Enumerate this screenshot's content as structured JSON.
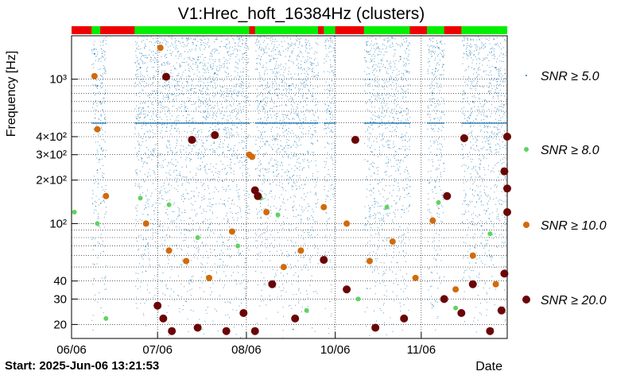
{
  "chart_data": {
    "type": "scatter",
    "title": "V1:Hrec_hoft_16384Hz (clusters)",
    "xlabel": "Date",
    "ylabel": "Frequency [Hz]",
    "x_unit": "days since 2025-06-06",
    "xlim": [
      0,
      152
    ],
    "ylim": [
      16,
      2000
    ],
    "yscale": "log",
    "x_ticks": [
      {
        "label": "06/06",
        "day": 0
      },
      {
        "label": "07/06",
        "day": 30
      },
      {
        "label": "08/06",
        "day": 61
      },
      {
        "label": "10/06",
        "day": 92
      },
      {
        "label": "11/06",
        "day": 122
      }
    ],
    "y_ticks": [
      {
        "label": "20",
        "value": 20
      },
      {
        "label": "30",
        "value": 30
      },
      {
        "label": "40",
        "value": 40
      },
      {
        "label": "10²",
        "value": 100
      },
      {
        "label": "2×10²",
        "value": 200
      },
      {
        "label": "3×10²",
        "value": 300
      },
      {
        "label": "4×10²",
        "value": 400
      },
      {
        "label": "10³",
        "value": 1000
      }
    ],
    "start_text": "Start: 2025-Jun-06 13:21:53",
    "segment_bar": {
      "legend_states": [
        "segment-on",
        "segment-off"
      ],
      "colors": {
        "on": "#00ee00",
        "off": "#ee0000"
      },
      "on_intervals": [
        [
          7,
          10
        ],
        [
          22,
          62
        ],
        [
          64,
          86
        ],
        [
          88,
          92
        ],
        [
          102,
          118
        ],
        [
          124,
          130
        ],
        [
          136,
          152
        ]
      ]
    },
    "activity_intervals": [
      [
        7,
        12
      ],
      [
        22,
        62
      ],
      [
        64,
        86
      ],
      [
        88,
        92
      ],
      [
        102,
        118
      ],
      [
        124,
        130
      ],
      [
        136,
        152
      ]
    ],
    "series": [
      {
        "name": "SNR ≥ 5.0",
        "color": "#1f77b4",
        "marker_size": 1,
        "points": [
          [
            8,
            1500
          ],
          [
            9,
            900
          ],
          [
            10,
            700
          ],
          [
            24,
            1200
          ],
          [
            30,
            800
          ],
          [
            40,
            600
          ],
          [
            50,
            1100
          ],
          [
            66,
            700
          ],
          [
            76,
            900
          ],
          [
            90,
            600
          ],
          [
            104,
            1000
          ],
          [
            112,
            500
          ],
          [
            126,
            800
          ],
          [
            140,
            700
          ],
          [
            148,
            1200
          ]
        ]
      },
      {
        "name": "SNR ≥ 8.0",
        "color": "#5fd35f",
        "marker_size": 3,
        "points": [
          [
            1,
            120
          ],
          [
            9,
            100
          ],
          [
            12,
            22
          ],
          [
            24,
            150
          ],
          [
            34,
            135
          ],
          [
            44,
            80
          ],
          [
            58,
            70
          ],
          [
            66,
            150
          ],
          [
            72,
            115
          ],
          [
            82,
            25
          ],
          [
            100,
            30
          ],
          [
            110,
            130
          ],
          [
            128,
            140
          ],
          [
            134,
            26
          ],
          [
            146,
            85
          ]
        ]
      },
      {
        "name": "SNR ≥ 10.0",
        "color": "#d26a0a",
        "marker_size": 4,
        "points": [
          [
            8,
            1050
          ],
          [
            9,
            450
          ],
          [
            12,
            155
          ],
          [
            31,
            1650
          ],
          [
            26,
            100
          ],
          [
            34,
            65
          ],
          [
            40,
            55
          ],
          [
            48,
            42
          ],
          [
            56,
            88
          ],
          [
            62,
            300
          ],
          [
            63,
            290
          ],
          [
            68,
            120
          ],
          [
            74,
            50
          ],
          [
            80,
            65
          ],
          [
            88,
            130
          ],
          [
            96,
            100
          ],
          [
            104,
            55
          ],
          [
            112,
            75
          ],
          [
            120,
            42
          ],
          [
            126,
            105
          ],
          [
            134,
            35
          ],
          [
            140,
            60
          ],
          [
            148,
            38
          ]
        ]
      },
      {
        "name": "SNR ≥ 20.0",
        "color": "#6b0505",
        "marker_size": 5,
        "points": [
          [
            33,
            1040
          ],
          [
            42,
            380
          ],
          [
            50,
            410
          ],
          [
            64,
            170
          ],
          [
            65,
            155
          ],
          [
            99,
            380
          ],
          [
            137,
            390
          ],
          [
            152,
            400
          ],
          [
            131,
            155
          ],
          [
            152,
            175
          ],
          [
            151,
            230
          ],
          [
            30,
            27
          ],
          [
            32,
            22
          ],
          [
            35,
            18
          ],
          [
            44,
            19
          ],
          [
            54,
            18
          ],
          [
            60,
            24
          ],
          [
            64,
            18
          ],
          [
            70,
            38
          ],
          [
            78,
            22
          ],
          [
            88,
            56
          ],
          [
            96,
            35
          ],
          [
            106,
            19
          ],
          [
            116,
            22
          ],
          [
            130,
            30
          ],
          [
            136,
            24
          ],
          [
            140,
            38
          ],
          [
            146,
            18
          ],
          [
            150,
            25
          ],
          [
            151,
            45
          ],
          [
            152,
            120
          ]
        ]
      }
    ],
    "legend": [
      {
        "label": "SNR ≥ 5.0"
      },
      {
        "label": "SNR ≥ 8.0"
      },
      {
        "label": "SNR ≥ 10.0"
      },
      {
        "label": "SNR ≥ 20.0"
      }
    ]
  }
}
